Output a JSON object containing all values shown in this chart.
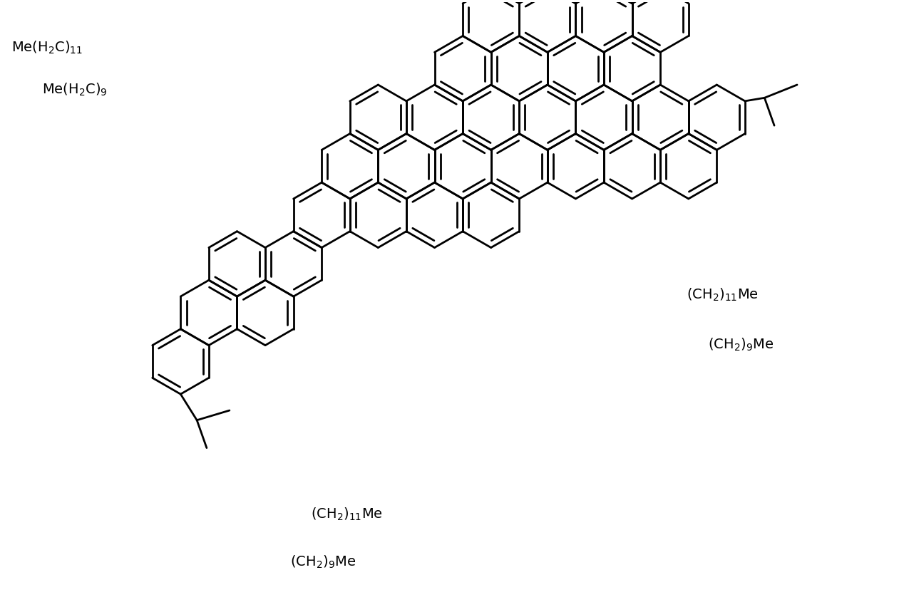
{
  "background_color": "#ffffff",
  "line_color": "#000000",
  "line_width": 2.0,
  "figure_width": 12.75,
  "figure_height": 8.59,
  "dpi": 100,
  "font_size": 14
}
